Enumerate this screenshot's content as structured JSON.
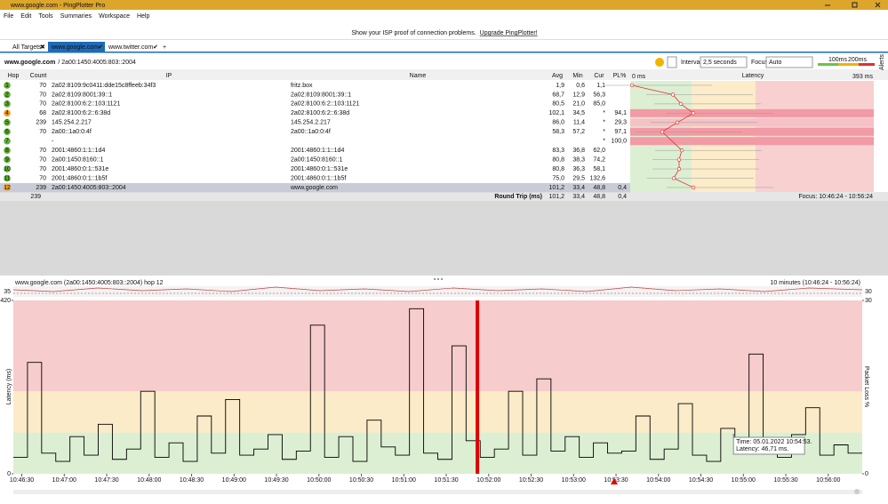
{
  "window": {
    "title": "www.google.com - PingPlotter Pro"
  },
  "menu": [
    "File",
    "Edit",
    "Tools",
    "Summaries",
    "Workspace",
    "Help"
  ],
  "banner": {
    "text": "Show your ISP proof of connection problems.",
    "link": "Upgrade PingPlotter!"
  },
  "tabs": [
    "All Targets",
    "www.google.com",
    "www.twitter.com"
  ],
  "breadcrumb": {
    "host": "www.google.com",
    "ip": "/ 2a00:1450:4005:803::2004"
  },
  "controls": {
    "interval_label": "Interval",
    "interval_value": "2,5 seconds",
    "focus_label": "Focus",
    "focus_value": "Auto",
    "legend": [
      "100ms",
      "200ms"
    ],
    "alerts": "Alerts"
  },
  "table": {
    "headers": [
      "Hop",
      "Count",
      "IP",
      "Name",
      "Avg",
      "Min",
      "Cur",
      "PL%",
      "Latency"
    ],
    "scale": [
      "0 ms",
      "393 ms"
    ],
    "rows": [
      [
        "1",
        "70",
        "2a02:8109:9c0411:dde15c8ffeeb:34f3",
        "fritz.box",
        "1,9",
        "0,6",
        "1,1",
        ""
      ],
      [
        "2",
        "70",
        "2a02:8109:8001:39::1",
        "2a02:8109:8001:39::1",
        "68,7",
        "12,9",
        "56,3",
        ""
      ],
      [
        "3",
        "70",
        "2a02:8100:6:2::103:1121",
        "2a02:8100:6:2::103:1121",
        "80,5",
        "21,0",
        "85,0",
        ""
      ],
      [
        "4",
        "68",
        "2a02:8100:6:2::6:38d",
        "2a02:8100:6:2::6:38d",
        "102,1",
        "34,5",
        "*",
        "94,1"
      ],
      [
        "5",
        "239",
        "145.254.2.217",
        "145.254.2.217",
        "86,0",
        "11,4",
        "*",
        "29,3"
      ],
      [
        "6",
        "70",
        "2a00::1a0:0:4f",
        "2a00::1a0:0:4f",
        "58,3",
        "57,2",
        "*",
        "97,1"
      ],
      [
        "7",
        "",
        "-",
        "",
        "",
        "",
        "*",
        "100,0"
      ],
      [
        "8",
        "70",
        "2001:4860:1:1::1d4",
        "2001:4860:1:1::1d4",
        "83,3",
        "36,8",
        "62,0",
        ""
      ],
      [
        "9",
        "70",
        "2a00:1450:8160::1",
        "2a00:1450:8160::1",
        "80,8",
        "38,3",
        "74,2",
        ""
      ],
      [
        "10",
        "70",
        "2001:4860:0:1::531e",
        "2001:4860:0:1::531e",
        "80,8",
        "36,3",
        "58,1",
        ""
      ],
      [
        "11",
        "70",
        "2001:4860:0:1::1b5f",
        "2001:4860:0:1::1b5f",
        "75,0",
        "29,5",
        "132,6",
        ""
      ],
      [
        "12",
        "239",
        "2a00:1450:4005:803::2004",
        "www.google.com",
        "101,2",
        "33,4",
        "48,8",
        "0,4"
      ]
    ],
    "summary": {
      "count": "239",
      "label": "Round Trip (ms)",
      "avg": "101,2",
      "min": "33,4",
      "cur": "48,8",
      "pl": "0,4",
      "focus": "Focus: 10:46:24 - 10:56:24"
    }
  },
  "chart_data": {
    "type": "line",
    "title": "www.google.com (2a00:1450:4005:803::2004) hop 12",
    "range_label": "10 minutes (10:46:24 - 10:56:24)",
    "y_label": "Latency (ms)",
    "y2_label": "Packet Loss %",
    "overview_ticks": [
      35,
      30
    ],
    "xlim": [
      0,
      600
    ],
    "ylim": [
      0,
      420
    ],
    "yticks": [
      0,
      420
    ],
    "y2lim": [
      0,
      30
    ],
    "y2ticks": [
      0,
      30
    ],
    "thresholds": [
      100,
      200
    ],
    "xticks": [
      {
        "value": 6,
        "label": "10:46:30"
      },
      {
        "value": 36,
        "label": "10:47:00"
      },
      {
        "value": 66,
        "label": "10:47:30"
      },
      {
        "value": 96,
        "label": "10:48:00"
      },
      {
        "value": 126,
        "label": "10:48:30"
      },
      {
        "value": 156,
        "label": "10:49:00"
      },
      {
        "value": 186,
        "label": "10:49:30"
      },
      {
        "value": 216,
        "label": "10:50:00"
      },
      {
        "value": 246,
        "label": "10:50:30"
      },
      {
        "value": 276,
        "label": "10:51:00"
      },
      {
        "value": 306,
        "label": "10:51:30"
      },
      {
        "value": 336,
        "label": "10:52:00"
      },
      {
        "value": 366,
        "label": "10:52:30"
      },
      {
        "value": 396,
        "label": "10:53:00"
      },
      {
        "value": 426,
        "label": "10:53:30"
      },
      {
        "value": 456,
        "label": "10:54:00"
      },
      {
        "value": 486,
        "label": "10:54:30"
      },
      {
        "value": 516,
        "label": "10:55:00"
      },
      {
        "value": 546,
        "label": "10:55:30"
      },
      {
        "value": 576,
        "label": "10:56:00"
      }
    ],
    "series": [
      {
        "name": "Latency",
        "color": "#000000",
        "x": [
          0,
          10,
          20,
          30,
          40,
          50,
          60,
          70,
          80,
          90,
          100,
          110,
          120,
          130,
          140,
          150,
          160,
          170,
          180,
          190,
          200,
          210,
          220,
          230,
          240,
          250,
          260,
          270,
          280,
          290,
          300,
          310,
          320,
          330,
          340,
          350,
          360,
          370,
          380,
          390,
          400,
          410,
          420,
          430,
          440,
          450,
          460,
          470,
          480,
          490,
          500,
          510,
          520,
          530,
          540,
          550,
          560,
          570,
          580,
          590
        ],
        "values": [
          40,
          270,
          50,
          30,
          90,
          45,
          120,
          35,
          60,
          200,
          40,
          75,
          30,
          140,
          50,
          180,
          45,
          60,
          95,
          35,
          55,
          360,
          40,
          90,
          30,
          130,
          65,
          45,
          400,
          50,
          35,
          310,
          80,
          40,
          60,
          200,
          45,
          230,
          55,
          90,
          40,
          75,
          50,
          55,
          140,
          35,
          60,
          170,
          45,
          30,
          110,
          50,
          290,
          60,
          40,
          95,
          160,
          45,
          70,
          50
        ]
      }
    ],
    "loss": {
      "name": "Packet Loss",
      "color": "#e00000",
      "axis": "y2",
      "x": [
        328
      ],
      "values": [
        30
      ]
    },
    "tooltip": {
      "x": 509,
      "time": "Time: 05.01.2022 10:54:53.",
      "latency": "Latency: 46,71 ms."
    }
  }
}
